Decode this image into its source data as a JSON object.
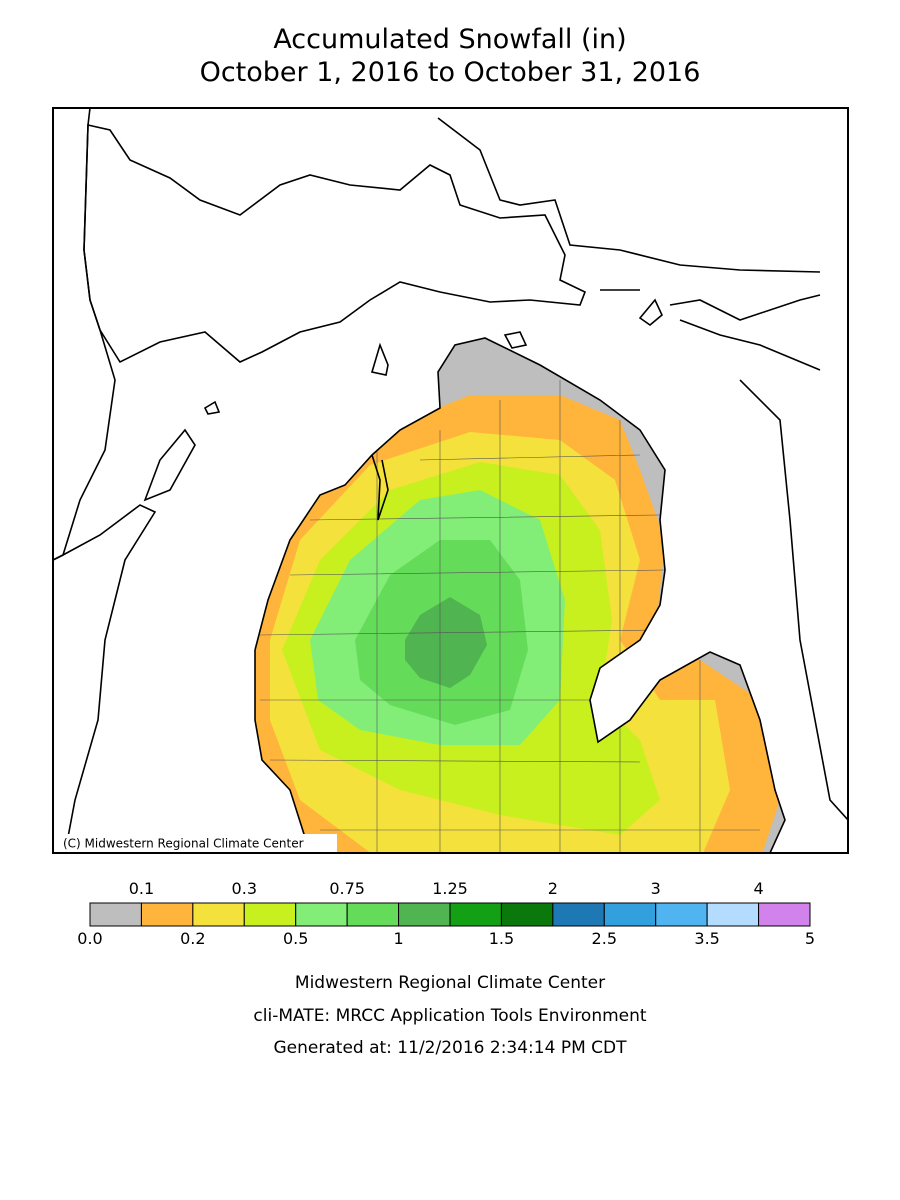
{
  "header": {
    "title": "Accumulated Snowfall (in)",
    "subtitle": "October 1, 2016 to October 31, 2016"
  },
  "map": {
    "copyright": "(C) Midwestern Regional Climate Center"
  },
  "legend": {
    "breaks": [
      {
        "value": 0,
        "label": "0.0"
      },
      0.1,
      0.2,
      0.3,
      0.5,
      0.75,
      1,
      1.25,
      1.5,
      2,
      2.5,
      3,
      3.5,
      4,
      5
    ],
    "colors": [
      "#bebebe",
      "#ffb43c",
      "#f5e13c",
      "#c8f01e",
      "#82ee78",
      "#64dc5a",
      "#50b450",
      "#14a014",
      "#0a780a",
      "#1e78b4",
      "#32a0dc",
      "#50b4f0",
      "#b4dcff",
      "#d282eb"
    ]
  },
  "footer": {
    "lines": [
      "Midwestern Regional Climate Center",
      "cli-MATE: MRCC Application Tools Environment",
      "Generated at: 11/2/2016 2:34:14 PM CDT"
    ]
  }
}
